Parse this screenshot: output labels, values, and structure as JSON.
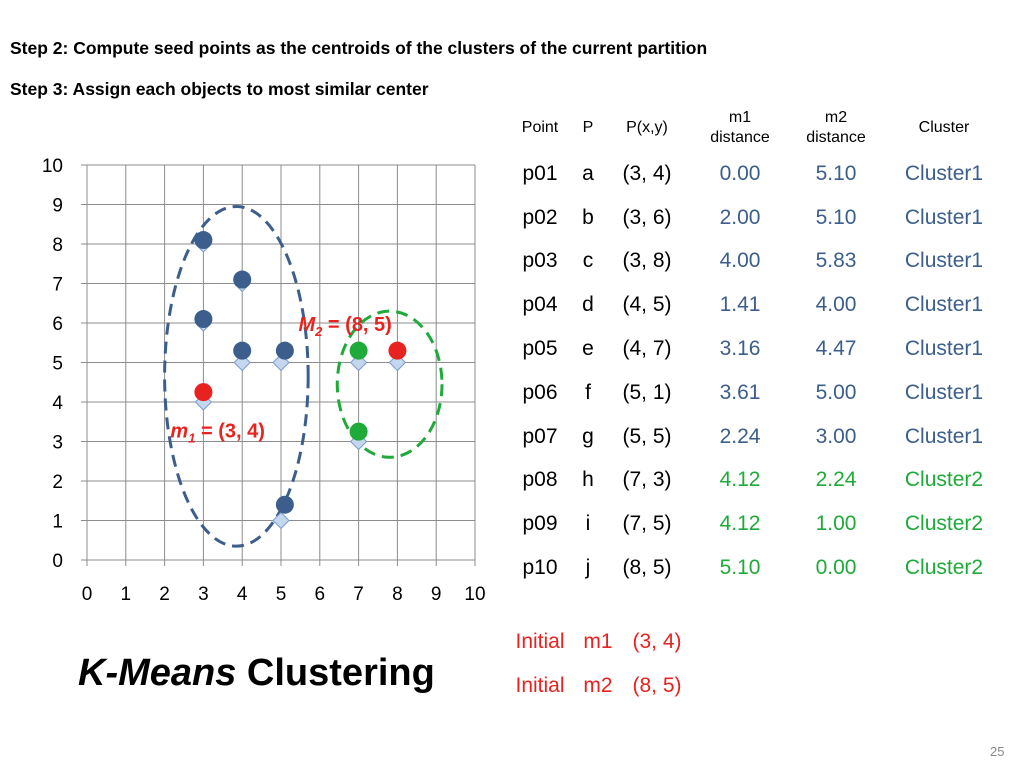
{
  "steps": {
    "step2": "Step 2: Compute seed points as the centroids of the clusters of the current partition",
    "step3": "Step 3: Assign each objects to most similar center"
  },
  "chart_data": {
    "type": "scatter",
    "xlim": [
      0,
      10
    ],
    "ylim": [
      0,
      10
    ],
    "grid": true,
    "xticks": [
      "0",
      "1",
      "2",
      "3",
      "4",
      "5",
      "6",
      "7",
      "8",
      "9",
      "10"
    ],
    "yticks": [
      "0",
      "1",
      "2",
      "3",
      "4",
      "5",
      "6",
      "7",
      "8",
      "9",
      "10"
    ],
    "series": [
      {
        "marker": "diamond",
        "color": "#c5d6ef",
        "points": [
          [
            3,
            4
          ],
          [
            3,
            6
          ],
          [
            3,
            8
          ],
          [
            4,
            5
          ],
          [
            4,
            7
          ],
          [
            5,
            1
          ],
          [
            5,
            5
          ],
          [
            7,
            3
          ],
          [
            7,
            5
          ],
          [
            8,
            5
          ]
        ]
      },
      {
        "marker": "circle",
        "color": "#3b5e8c",
        "points": [
          [
            3,
            8.1
          ],
          [
            4,
            7.1
          ],
          [
            3,
            6.1
          ],
          [
            4,
            5.3
          ],
          [
            5.1,
            5.3
          ],
          [
            5.1,
            1.4
          ]
        ]
      },
      {
        "marker": "circle",
        "color": "#1faa3a",
        "points": [
          [
            7,
            5.3
          ],
          [
            7,
            3.25
          ]
        ]
      },
      {
        "marker": "circle",
        "color": "#e8231f",
        "points": [
          [
            3,
            4.25
          ],
          [
            8,
            5.3
          ]
        ]
      }
    ],
    "clusters": [
      {
        "color": "#3b5e8c",
        "center": [
          3.85,
          4.65
        ],
        "rx": 1.85,
        "ry": 4.3
      },
      {
        "color": "#1faa3a",
        "center": [
          7.8,
          4.45
        ],
        "rx": 1.35,
        "ry": 1.85
      }
    ],
    "annotations": [
      {
        "id": "m1",
        "letter": "m",
        "sub": "1",
        "rest": " = (3, 4)",
        "at": [
          2.15,
          3.1
        ]
      },
      {
        "id": "m2",
        "letter": "M",
        "sub": "2",
        "rest": " = (8, 5)",
        "at": [
          5.45,
          5.8
        ]
      }
    ]
  },
  "table": {
    "headers": [
      "Point",
      "P",
      "P(x,y)",
      "m1\ndistance",
      "m2\ndistance",
      "Cluster"
    ],
    "rows": [
      {
        "point": "p01",
        "p": "a",
        "xy": "(3, 4)",
        "m1": "0.00",
        "m2": "5.10",
        "cluster": "Cluster1",
        "group": "blue"
      },
      {
        "point": "p02",
        "p": "b",
        "xy": "(3, 6)",
        "m1": "2.00",
        "m2": "5.10",
        "cluster": "Cluster1",
        "group": "blue"
      },
      {
        "point": "p03",
        "p": "c",
        "xy": "(3, 8)",
        "m1": "4.00",
        "m2": "5.83",
        "cluster": "Cluster1",
        "group": "blue"
      },
      {
        "point": "p04",
        "p": "d",
        "xy": "(4, 5)",
        "m1": "1.41",
        "m2": "4.00",
        "cluster": "Cluster1",
        "group": "blue"
      },
      {
        "point": "p05",
        "p": "e",
        "xy": "(4, 7)",
        "m1": "3.16",
        "m2": "4.47",
        "cluster": "Cluster1",
        "group": "blue"
      },
      {
        "point": "p06",
        "p": "f",
        "xy": "(5, 1)",
        "m1": "3.61",
        "m2": "5.00",
        "cluster": "Cluster1",
        "group": "blue"
      },
      {
        "point": "p07",
        "p": "g",
        "xy": "(5, 5)",
        "m1": "2.24",
        "m2": "3.00",
        "cluster": "Cluster1",
        "group": "blue"
      },
      {
        "point": "p08",
        "p": "h",
        "xy": "(7, 3)",
        "m1": "4.12",
        "m2": "2.24",
        "cluster": "Cluster2",
        "group": "green"
      },
      {
        "point": "p09",
        "p": "i",
        "xy": "(7, 5)",
        "m1": "4.12",
        "m2": "1.00",
        "cluster": "Cluster2",
        "group": "green"
      },
      {
        "point": "p10",
        "p": "j",
        "xy": "(8, 5)",
        "m1": "5.10",
        "m2": "0.00",
        "cluster": "Cluster2",
        "group": "green"
      }
    ]
  },
  "initial": [
    {
      "label": "Initial",
      "name": "m1",
      "xy": "(3, 4)"
    },
    {
      "label": "Initial",
      "name": "m2",
      "xy": "(8, 5)"
    }
  ],
  "title": {
    "italic": "K-Means",
    "rest": " Clustering"
  },
  "page_number": "25"
}
